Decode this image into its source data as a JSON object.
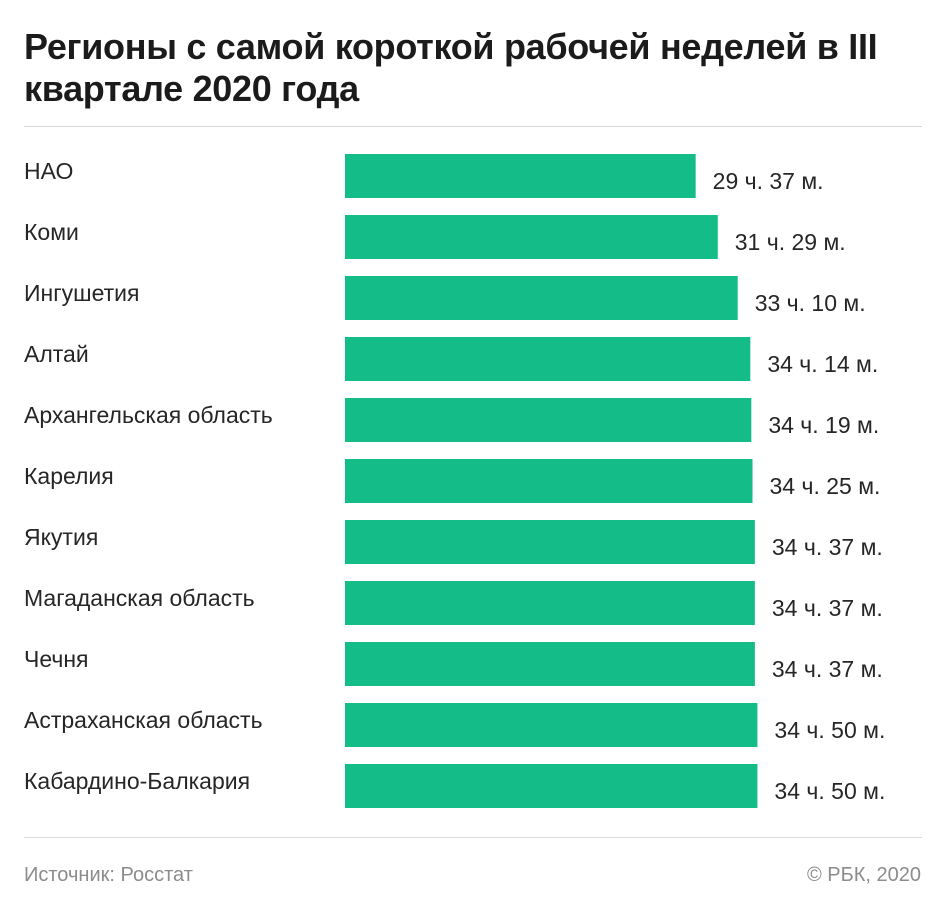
{
  "title": "Регионы с самой короткой рабочей неделей в III квартале 2020 года",
  "source": "Источник: Росстат",
  "copyright": "© РБК, 2020",
  "colors": {
    "bar": "#14bd87",
    "rule": "#d9d9d9",
    "text": "#262626",
    "footer": "#8c8c8c"
  },
  "chart_data": {
    "type": "bar",
    "orientation": "horizontal",
    "unit": "hours per week",
    "xlim": [
      0,
      35
    ],
    "grid": false,
    "categories": [
      "НАО",
      "Коми",
      "Ингушетия",
      "Алтай",
      "Архангельская область",
      "Карелия",
      "Якутия",
      "Магаданская область",
      "Чечня",
      "Астраханская область",
      "Кабардино-Балкария"
    ],
    "values": [
      29.617,
      31.483,
      33.167,
      34.233,
      34.317,
      34.417,
      34.617,
      34.617,
      34.617,
      34.833,
      34.833
    ],
    "value_labels": [
      "29 ч. 37 м.",
      "31 ч. 29 м.",
      "33 ч. 10 м.",
      "34 ч. 14 м.",
      "34 ч. 19 м.",
      "34 ч. 25 м.",
      "34 ч. 37 м.",
      "34 ч. 37 м.",
      "34 ч. 37 м.",
      "34 ч. 50 м.",
      "34 ч. 50 м."
    ]
  }
}
